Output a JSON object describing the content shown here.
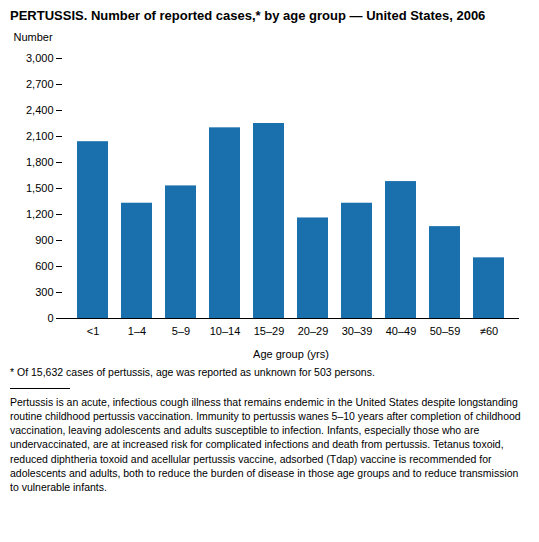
{
  "chart_data": {
    "type": "bar",
    "title": "PERTUSSIS. Number of reported cases,* by age group — United States, 2006",
    "xlabel": "Age group (yrs)",
    "ylabel": "Number",
    "categories": [
      "<1",
      "1–4",
      "5–9",
      "10–14",
      "15–29",
      "20–29",
      "30–39",
      "40–49",
      "50–59",
      "≠60"
    ],
    "values": [
      2040,
      1330,
      1530,
      2200,
      2250,
      1160,
      1330,
      1580,
      1060,
      700
    ],
    "color": "#1a6fad",
    "ylim": [
      0,
      3000
    ],
    "yticks": [
      0,
      300,
      600,
      900,
      {
        "value": 1200,
        "label": "1,200"
      },
      {
        "value": 1500,
        "label": "1,500"
      },
      {
        "value": 1800,
        "label": "1,800"
      },
      {
        "value": 2100,
        "label": "2,100"
      },
      {
        "value": 2400,
        "label": "2,400"
      },
      {
        "value": 2700,
        "label": "2,700"
      },
      {
        "value": 3000,
        "label": "3,000"
      }
    ],
    "grid": false,
    "annotations": [
      "* Of 15,632 cases of pertussis, age was reported as unknown for 503 persons.",
      "Pertussis is an acute, infectious cough illness that remains endemic in the United States despite longstanding routine childhood pertussis vaccination. Immunity to pertussis wanes 5–10 years after completion of childhood vaccination, leaving adolescents and adults susceptible to infection. Infants, especially those who are undervaccinated, are at increased risk for complicated infections and death from pertussis. Tetanus toxoid, reduced diphtheria toxoid and acellular pertussis vaccine, adsorbed (Tdap) vaccine is recommended for adolescents and adults, both to reduce the burden of disease in those age groups and to reduce transmission to vulnerable infants."
    ]
  }
}
